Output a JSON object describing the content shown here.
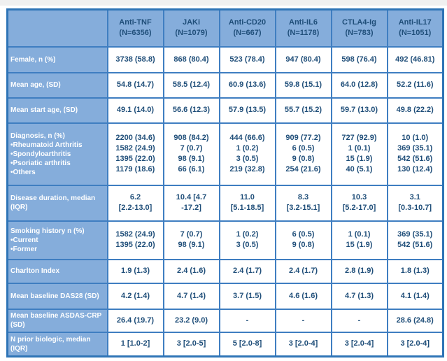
{
  "colors": {
    "cell_blue": "#85addb",
    "grid_border": "#3f7ec1",
    "outer_border": "#2e74b6",
    "header_text": "#1f4e79",
    "data_text": "#1f4e79",
    "label_text": "#ffffff"
  },
  "chart_data": {
    "type": "table",
    "title": "",
    "columns": [
      {
        "label": "Anti-TNF",
        "n": "(N=6356)"
      },
      {
        "label": "JAKi",
        "n": "(N=1079)"
      },
      {
        "label": "Anti-CD20",
        "n": "(N=667)"
      },
      {
        "label": "Anti-IL6",
        "n": "(N=1178)"
      },
      {
        "label": "CTLA4-Ig",
        "n": "(N=783)"
      },
      {
        "label": "Anti-IL17",
        "n": "(N=1051)"
      }
    ],
    "rows": [
      {
        "label": [
          "Female, n (%)"
        ],
        "cells": [
          [
            "3738 (58.8)"
          ],
          [
            "868 (80.4)"
          ],
          [
            "523 (78.4)"
          ],
          [
            "947 (80.4)"
          ],
          [
            "598 (76.4)"
          ],
          [
            "492 (46.81)"
          ]
        ]
      },
      {
        "label": [
          "Mean age, (SD)"
        ],
        "cells": [
          [
            "54.8 (14.7)"
          ],
          [
            "58.5 (12.4)"
          ],
          [
            "60.9 (13.6)"
          ],
          [
            "59.8 (15.1)"
          ],
          [
            "64.0 (12.8)"
          ],
          [
            "52.2 (11.6)"
          ]
        ]
      },
      {
        "label": [
          "Mean start age, (SD)"
        ],
        "cells": [
          [
            "49.1 (14.0)"
          ],
          [
            "56.6 (12.3)"
          ],
          [
            "57.9 (13.5)"
          ],
          [
            "55.7 (15.2)"
          ],
          [
            "59.7 (13.0)"
          ],
          [
            "49.8 (22.2)"
          ]
        ]
      },
      {
        "label": [
          "Diagnosis, n (%)",
          "•Rheumatoid Arthritis",
          "•Spondyloarthritis",
          "•Psoriatic arthritis",
          "•Others"
        ],
        "cells": [
          [
            "2200 (34.6)",
            "1582 (24.9)",
            "1395 (22.0)",
            "1179 (18.6)"
          ],
          [
            "908 (84.2)",
            "7 (0.7)",
            "98 (9.1)",
            "66 (6.1)"
          ],
          [
            "444 (66.6)",
            "1 (0.2)",
            "3 (0.5)",
            "219 (32.8)"
          ],
          [
            "909 (77.2)",
            "6 (0.5)",
            "9 (0.8)",
            "254 (21.6)"
          ],
          [
            "727 (92.9)",
            "1 (0.1)",
            "15 (1.9)",
            "40 (5.1)"
          ],
          [
            "10 (1.0)",
            "369 (35.1)",
            "542 (51.6)",
            "130 (12.4)"
          ]
        ]
      },
      {
        "label": [
          "Disease duration, median (IQR)"
        ],
        "cells": [
          [
            "6.2",
            "[2.2-13.0]"
          ],
          [
            "10.4 [4.7",
            "-17.2]"
          ],
          [
            "11.0",
            "[5.1-18.5]"
          ],
          [
            "8.3",
            "[3.2-15.1]"
          ],
          [
            "10.3",
            "[5.2-17.0]"
          ],
          [
            "3.1",
            "[0.3-10.7]"
          ]
        ]
      },
      {
        "label": [
          "Smoking history n (%)",
          "•Current",
          "•Former"
        ],
        "cells": [
          [
            "1582 (24.9)",
            "1395 (22.0)"
          ],
          [
            "7 (0.7)",
            "98 (9.1)"
          ],
          [
            "1 (0.2)",
            "3 (0.5)"
          ],
          [
            "6 (0.5)",
            "9 (0.8)"
          ],
          [
            "1 (0.1)",
            "15 (1.9)"
          ],
          [
            "369 (35.1)",
            "542 (51.6)"
          ]
        ]
      },
      {
        "label": [
          "Charlton Index"
        ],
        "cells": [
          [
            "1.9 (1.3)"
          ],
          [
            "2.4 (1.6)"
          ],
          [
            "2.4 (1.7)"
          ],
          [
            "2.4 (1.7)"
          ],
          [
            "2.8 (1.9)"
          ],
          [
            "1.8 (1.3)"
          ]
        ]
      },
      {
        "label": [
          "Mean baseline DAS28 (SD)"
        ],
        "cells": [
          [
            "4.2 (1.4)"
          ],
          [
            "4.7 (1.4)"
          ],
          [
            "3.7 (1.5)"
          ],
          [
            "4.6 (1.6)"
          ],
          [
            "4.7 (1.3)"
          ],
          [
            "4.1 (1.4)"
          ]
        ]
      },
      {
        "label": [
          "Mean baseline ASDAS-CRP (SD)"
        ],
        "cells": [
          [
            "26.4 (19.7)"
          ],
          [
            "23.2 (9.0)"
          ],
          [
            "-"
          ],
          [
            "-"
          ],
          [
            "-"
          ],
          [
            "28.6 (24.8)"
          ]
        ]
      },
      {
        "label": [
          "N prior biologic, median (IQR)"
        ],
        "cells": [
          [
            "1 [1.0-2]"
          ],
          [
            "3 [2.0-5]"
          ],
          [
            "5 [2.0-8]"
          ],
          [
            "3 [2.0-4]"
          ],
          [
            "3 [2.0-4]"
          ],
          [
            "3 [2.0-4]"
          ]
        ]
      }
    ]
  }
}
